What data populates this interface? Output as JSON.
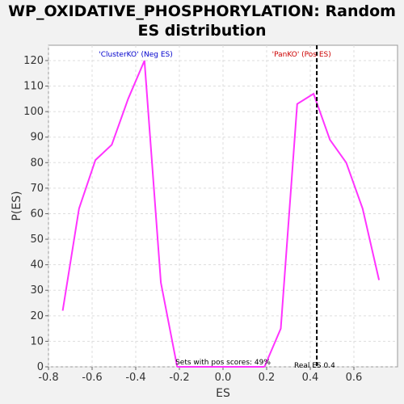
{
  "chart_data": {
    "type": "line",
    "title": [
      "WP_OXIDATIVE_PHOSPHORYLATION: Random",
      "ES distribution"
    ],
    "xlabel": "ES",
    "ylabel": "P(ES)",
    "xlim": [
      -0.8,
      0.8
    ],
    "ylim": [
      0,
      126
    ],
    "xticks": [
      -0.8,
      -0.6,
      -0.4,
      -0.2,
      0.0,
      0.2,
      0.4,
      0.6
    ],
    "xtick_labels": [
      "-0.8",
      "-0.6",
      "-0.4",
      "-0.2",
      "0.0",
      "0.2",
      "0.4",
      "0.6"
    ],
    "yticks": [
      0,
      10,
      20,
      30,
      40,
      50,
      60,
      70,
      80,
      90,
      100,
      110,
      120
    ],
    "grid": true,
    "series": [
      {
        "color": "#ff33ff",
        "x": [
          -0.735,
          -0.66,
          -0.585,
          -0.51,
          -0.435,
          -0.36,
          -0.285,
          -0.21
        ],
        "y": [
          22,
          62,
          81,
          87,
          105,
          120,
          33,
          0
        ]
      },
      {
        "color": "#ff33ff",
        "x": [
          0.19,
          0.265,
          0.34,
          0.415,
          0.49,
          0.565,
          0.64,
          0.715
        ],
        "y": [
          0,
          15,
          103,
          107,
          89,
          80,
          62,
          34
        ]
      }
    ],
    "flat_segment": {
      "x": [
        -0.21,
        0.19
      ],
      "y": [
        0,
        0
      ]
    },
    "vline": {
      "x": 0.43,
      "style": "dashed",
      "color": "#000000"
    },
    "annotations": {
      "neg": {
        "text": "'ClusterKO' (Neg ES)",
        "color": "#0000cc",
        "x": -0.4
      },
      "pos": {
        "text": "'PanKO' (Pos ES)",
        "color": "#cc0000",
        "x": 0.36
      },
      "pos_scores": {
        "text": "Sets with pos scores: 49%",
        "x": 0.0
      },
      "real_es": {
        "text": "Real ES 0.4",
        "x": 0.42
      }
    }
  }
}
